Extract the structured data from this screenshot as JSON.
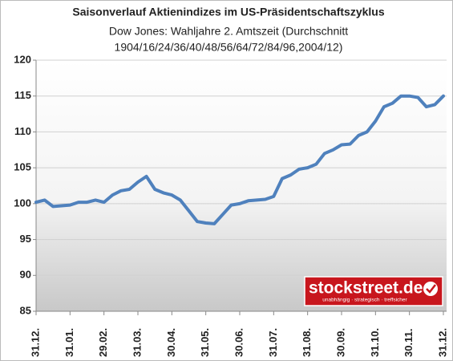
{
  "chart_data": {
    "type": "line",
    "title": "Saisonverlauf Aktienindizes im US-Präsidentschaftszyklus",
    "subtitle": [
      "Dow Jones: Wahljahre 2. Amtszeit (Durchschnitt",
      "1904/16/24/36/40/48/56/64/72/84/96,2004/12)"
    ],
    "x": [
      0,
      0.25,
      0.5,
      0.75,
      1,
      1.25,
      1.5,
      1.75,
      2,
      2.25,
      2.5,
      2.75,
      3,
      3.25,
      3.5,
      3.75,
      4,
      4.25,
      4.5,
      4.75,
      5,
      5.25,
      5.5,
      5.75,
      6,
      6.25,
      6.5,
      6.75,
      7,
      7.25,
      7.5,
      7.75,
      8,
      8.25,
      8.5,
      8.75,
      9,
      9.25,
      9.5,
      9.75,
      10,
      10.25,
      10.5,
      10.75,
      11,
      11.25,
      11.5,
      11.75,
      12
    ],
    "values": [
      100.2,
      100.5,
      99.6,
      99.7,
      99.8,
      100.2,
      100.2,
      100.5,
      100.2,
      101.2,
      101.8,
      102.0,
      103.0,
      103.8,
      102.0,
      101.5,
      101.2,
      100.5,
      99.0,
      97.5,
      97.3,
      97.2,
      98.5,
      99.8,
      100.0,
      100.4,
      100.5,
      100.6,
      101.0,
      103.5,
      104.0,
      104.8,
      105.0,
      105.5,
      107.0,
      107.5,
      108.2,
      108.3,
      109.5,
      110.0,
      111.5,
      113.5,
      114.0,
      115.0,
      115.0,
      114.8,
      113.5,
      113.8,
      115.0
    ],
    "color": "#4f81bd",
    "xlim": [
      0,
      12
    ],
    "xticks": [
      {
        "value": 0,
        "label": "31.12."
      },
      {
        "value": 1,
        "label": "31.01."
      },
      {
        "value": 2,
        "label": "29.02."
      },
      {
        "value": 3,
        "label": "31.03."
      },
      {
        "value": 4,
        "label": "30.04."
      },
      {
        "value": 5,
        "label": "31.05."
      },
      {
        "value": 6,
        "label": "30.06."
      },
      {
        "value": 7,
        "label": "31.07."
      },
      {
        "value": 8,
        "label": "31.08."
      },
      {
        "value": 9,
        "label": "30.09."
      },
      {
        "value": 10,
        "label": "31.10."
      },
      {
        "value": 11,
        "label": "30.11."
      },
      {
        "value": 12,
        "label": "31.12."
      }
    ],
    "ylim": [
      85,
      120
    ],
    "yticks": [
      85,
      90,
      95,
      100,
      105,
      110,
      115,
      120
    ],
    "grid": true
  },
  "logo": {
    "text": "stockstreet.de",
    "tagline": "unabhängig · strategisch · treffsicher"
  }
}
